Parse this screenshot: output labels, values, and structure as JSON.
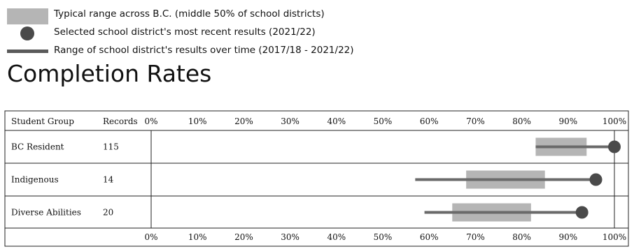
{
  "legend": {
    "range_label": "Typical range across B.C. (middle 50% of school districts)",
    "recent_label": "Selected school district's most recent results (2021/22)",
    "over_time_label": "Range of school district's results over time (2017/18 - 2021/22)"
  },
  "chart_data": {
    "type": "range-dot",
    "title": "Completion Rates",
    "columns": {
      "group": "Student Group",
      "records": "Records"
    },
    "xlim": [
      0,
      100
    ],
    "ticks": [
      0,
      10,
      20,
      30,
      40,
      50,
      60,
      70,
      80,
      90,
      100
    ],
    "tick_labels": [
      "0%",
      "10%",
      "20%",
      "30%",
      "40%",
      "50%",
      "60%",
      "70%",
      "80%",
      "90%",
      "100%"
    ],
    "grid": false,
    "colors": {
      "box": "#b5b5b5",
      "line": "#6a6a6a",
      "dot": "#4a4a4a"
    },
    "rows": [
      {
        "group": "BC Resident",
        "records": "115",
        "typical_range": [
          83,
          94
        ],
        "over_time": [
          83,
          100
        ],
        "recent": 100
      },
      {
        "group": "Indigenous",
        "records": "14",
        "typical_range": [
          68,
          85
        ],
        "over_time": [
          57,
          96
        ],
        "recent": 96
      },
      {
        "group": "Diverse Abilities",
        "records": "20",
        "typical_range": [
          65,
          82
        ],
        "over_time": [
          59,
          93
        ],
        "recent": 93
      }
    ]
  }
}
